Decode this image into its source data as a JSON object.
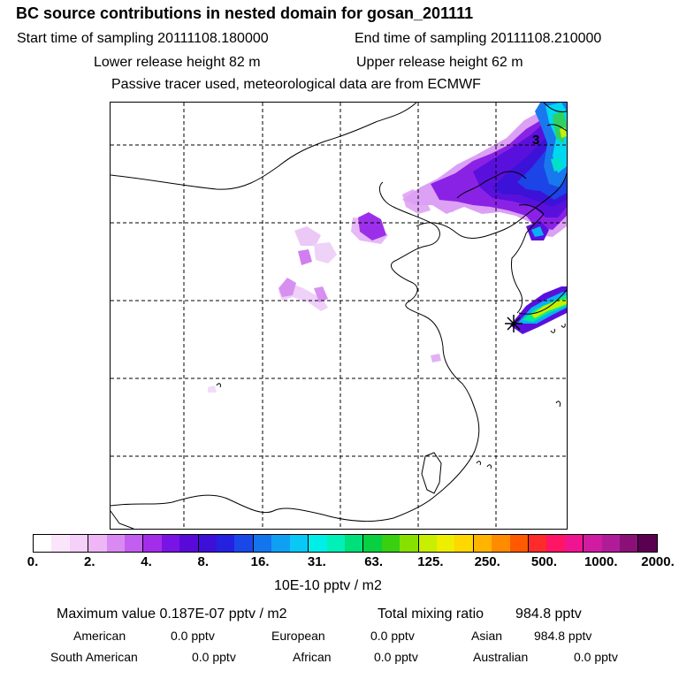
{
  "header": {
    "title": "BC  source contributions in nested domain for gosan_201111",
    "start_label": "Start time of sampling 20111108.180000",
    "end_label": "End time of sampling 20111108.210000",
    "lower_label": "Lower release height   82 m",
    "upper_label": "Upper release height   62 m",
    "tracer_note": "Passive tracer used, meteorological data are from ECMWF"
  },
  "map": {
    "contour_label": "3"
  },
  "colorbar": {
    "tick_labels": [
      "0.",
      "2.",
      "4.",
      "8.",
      "16.",
      "31.",
      "63.",
      "125.",
      "250.",
      "500.",
      "1000.",
      "2000."
    ],
    "unit": "10E-10 pptv / m2",
    "colors": [
      "#ffffff",
      "#fbe5fb",
      "#f5d0f8",
      "#efb6f6",
      "#d88af2",
      "#c35ff0",
      "#a22eea",
      "#7a14e4",
      "#5a0ad8",
      "#3c10d8",
      "#2422e0",
      "#1a48e8",
      "#1474ee",
      "#0fa0f4",
      "#0ac8f6",
      "#00eee8",
      "#00f0b8",
      "#00e07a",
      "#08d040",
      "#38d010",
      "#88e000",
      "#c8ee00",
      "#eeee00",
      "#ffd800",
      "#ffb400",
      "#ff8c00",
      "#ff5a00",
      "#ff2a2a",
      "#ff1466",
      "#f01490",
      "#d01ca0",
      "#b01c98",
      "#8a1078",
      "#5a0050"
    ]
  },
  "stats": {
    "max_label": "Maximum value  0.187E-07 pptv / m2",
    "total_label": "Total mixing ratio",
    "total_value": "984.8 pptv",
    "regions": [
      {
        "name": "American",
        "value": "0.0 pptv"
      },
      {
        "name": "European",
        "value": "0.0 pptv"
      },
      {
        "name": "Asian",
        "value": "984.8 pptv"
      },
      {
        "name": "South American",
        "value": "0.0 pptv"
      },
      {
        "name": "African",
        "value": "0.0 pptv"
      },
      {
        "name": "Australian",
        "value": "0.0 pptv"
      }
    ]
  }
}
